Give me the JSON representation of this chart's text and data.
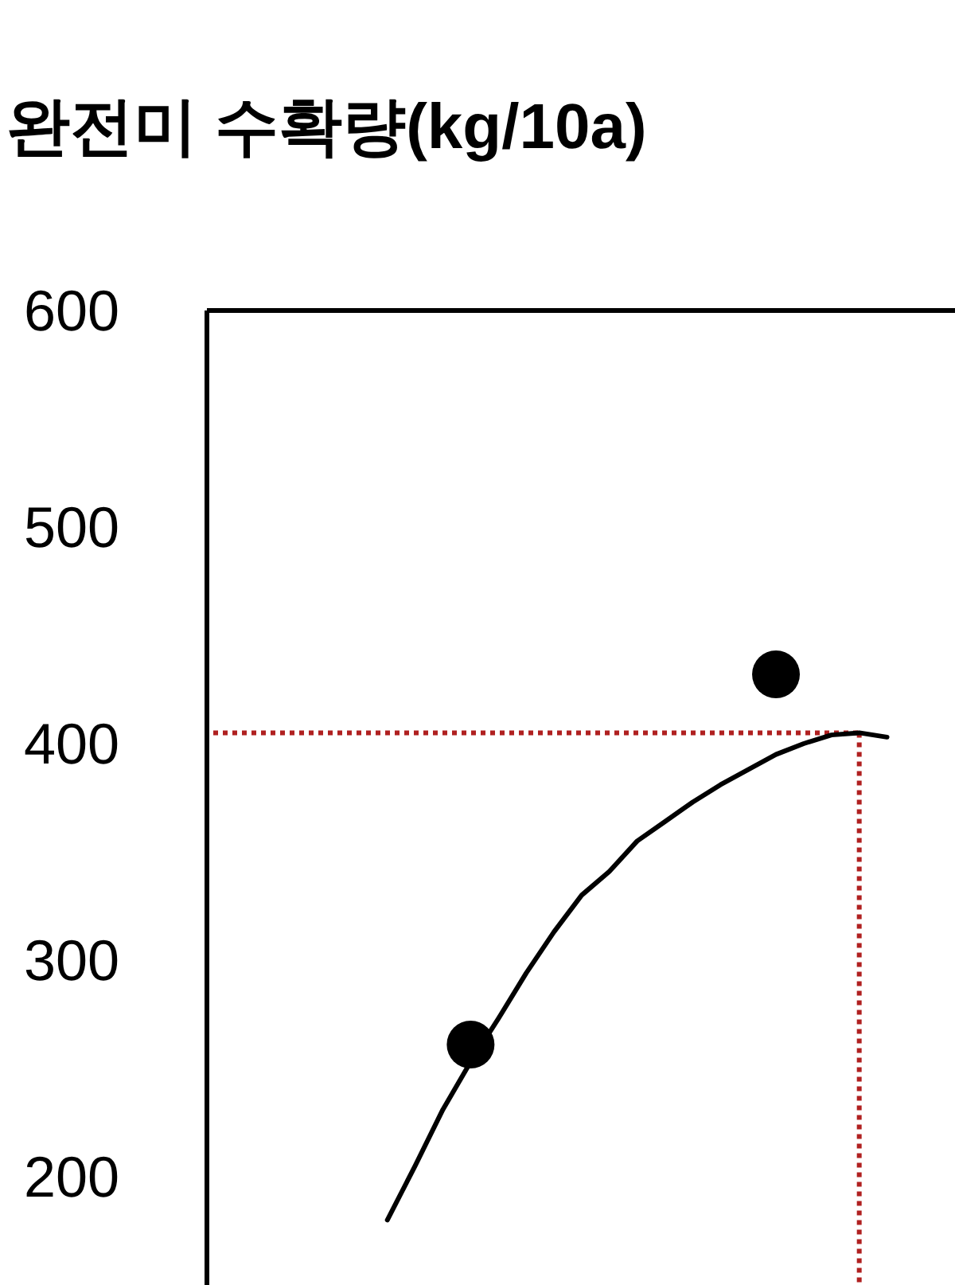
{
  "chart_data": {
    "type": "scatter",
    "title": "완전미 수확량(kg/10a)",
    "categories": [
      null,
      null,
      null,
      null,
      null,
      null,
      null,
      null,
      null,
      null,
      null,
      null,
      null,
      null,
      null,
      null,
      null,
      null,
      null,
      null,
      null,
      null,
      null,
      null,
      null
    ],
    "ylim": [
      150,
      600
    ],
    "yticks": [
      200,
      300,
      400,
      500,
      600
    ],
    "tick_labels": "y",
    "grid": false,
    "series": [
      {
        "type": "line",
        "color": "#000000",
        "line_style": "solid",
        "marker": "none",
        "values": [
          null,
          null,
          null,
          null,
          null,
          null,
          180,
          205,
          231,
          253,
          273,
          294,
          313,
          330,
          341,
          355,
          364,
          373,
          381,
          388,
          395,
          400,
          404,
          405,
          403
        ]
      },
      {
        "color": "#000000",
        "marker": "circle",
        "values": [
          null,
          null,
          null,
          null,
          null,
          null,
          null,
          null,
          null,
          261,
          null,
          null,
          null,
          null,
          null,
          null,
          null,
          null,
          null,
          null,
          432,
          null,
          null,
          null,
          null
        ]
      }
    ],
    "ref_lines": [
      {
        "axis": "y",
        "value": 405,
        "color": "#b02020",
        "line_style": "dotted"
      }
    ]
  }
}
